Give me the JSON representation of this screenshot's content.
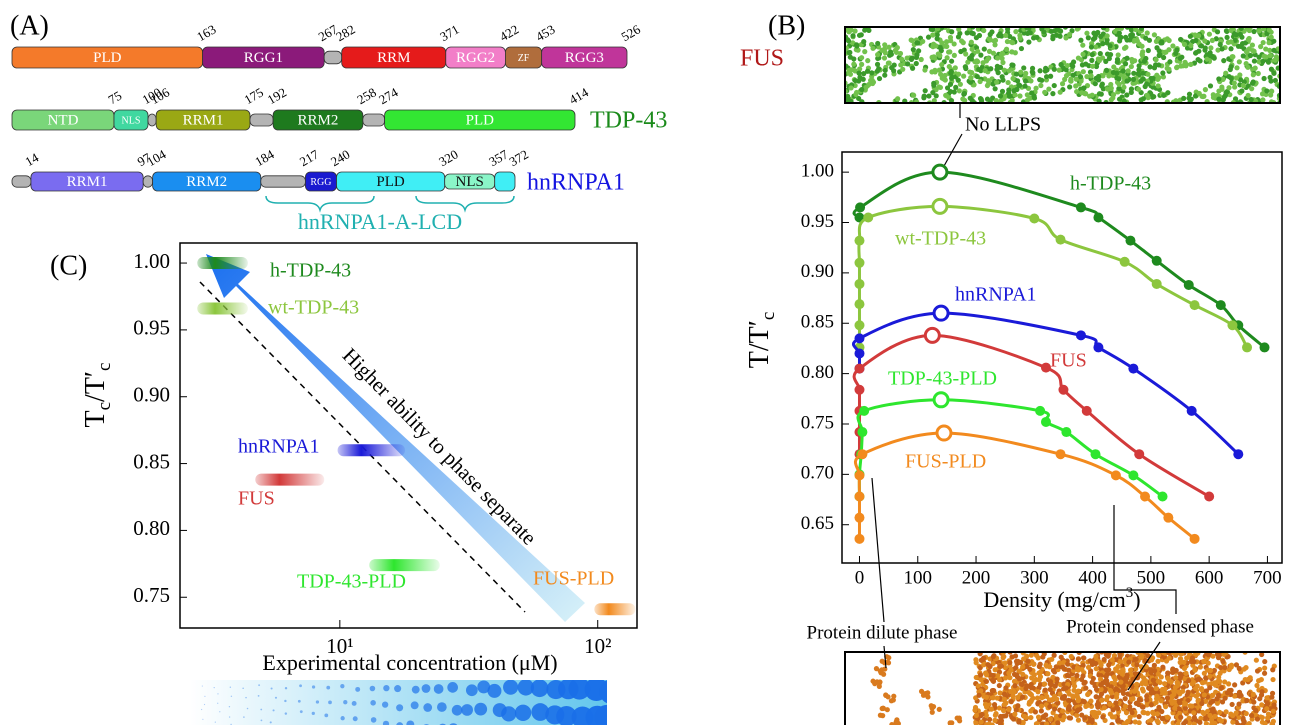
{
  "panel_labels": {
    "a": "(A)",
    "b": "(B)",
    "c": "(C)"
  },
  "domains": {
    "proteins": [
      {
        "name": "FUS",
        "name_color": "#b01818",
        "boundaries": [
          163,
          267,
          282,
          371,
          422,
          453,
          526
        ],
        "segments": [
          "PLD",
          "RGG1",
          null,
          "RRM",
          "RGG2",
          "ZF",
          "RGG3"
        ],
        "colors": [
          "#f47a2a",
          "#8b1a7a",
          "#b4b4b4",
          "#e51b1b",
          "#f27ec8",
          "#b06d3c",
          "#c0359a"
        ]
      },
      {
        "name": "TDP-43",
        "name_color": "#1a8a1a",
        "boundaries": [
          75,
          100,
          106,
          175,
          192,
          258,
          274,
          414
        ],
        "segments": [
          "NTD",
          "NLS",
          null,
          "RRM1",
          null,
          "RRM2",
          null,
          "PLD"
        ],
        "colors": [
          "#7ad67a",
          "#40d8a0",
          "#b4b4b4",
          "#9aa814",
          "#b4b4b4",
          "#1e7a1e",
          "#b4b4b4",
          "#33e633"
        ]
      },
      {
        "name": "hnRNPA1",
        "name_color": "#1414e0",
        "boundaries": [
          14,
          97,
          104,
          184,
          217,
          240,
          320,
          357,
          372
        ],
        "segments": [
          null,
          "RRM1",
          null,
          "RRM2",
          null,
          "RGG",
          "PLD",
          "NLS",
          null
        ],
        "colors": [
          "#b4b4b4",
          "#7a6cf0",
          "#b4b4b4",
          "#1a8ef0",
          "#b4b4b4",
          "#1a1ad0",
          "#40eef5",
          "#8af5c8",
          "#40eef5"
        ]
      }
    ],
    "bracket_label": "hnRNPA1-A-LCD"
  },
  "chart_data": [
    {
      "type": "scatter",
      "xlabel": [
        "Density (mg/cm",
        "3",
        ")"
      ],
      "ylabel": [
        "T/T′",
        "c"
      ],
      "xlim": [
        -30,
        725
      ],
      "ylim": [
        0.612,
        1.02
      ],
      "xticks": [
        0,
        100,
        200,
        300,
        400,
        500,
        600,
        700
      ],
      "yticks": [
        0.65,
        {
          "value": 0.7,
          "label": "0.70"
        },
        0.75,
        {
          "value": 0.8,
          "label": "0.80"
        },
        0.85,
        {
          "value": 0.9,
          "label": "0.90"
        },
        0.95,
        {
          "value": 1,
          "label": "1.00"
        }
      ],
      "series": [
        {
          "name": "h-TDP-43",
          "color": "#1e8a1e",
          "x": [
            0,
            1,
            380,
            410,
            465,
            510,
            565,
            620,
            650,
            695
          ],
          "values": [
            0.955,
            0.965,
            0.965,
            0.955,
            0.932,
            0.912,
            0.888,
            0.868,
            0.848,
            0.826
          ],
          "critical": {
            "x": 138,
            "y": 1
          }
        },
        {
          "name": "wt-TDP-43",
          "color": "#8cc63e",
          "x": [
            0,
            0,
            0,
            0,
            0,
            0,
            15,
            300,
            345,
            455,
            510,
            575,
            640,
            665
          ],
          "values": [
            0.826,
            0.848,
            0.869,
            0.889,
            0.91,
            0.932,
            0.955,
            0.954,
            0.933,
            0.911,
            0.889,
            0.868,
            0.848,
            0.826
          ],
          "critical": {
            "x": 138,
            "y": 0.966
          }
        },
        {
          "name": "hnRNPA1",
          "color": "#1a1ad8",
          "x": [
            0,
            0,
            0,
            380,
            410,
            470,
            570,
            650
          ],
          "values": [
            0.805,
            0.82,
            0.835,
            0.838,
            0.826,
            0.805,
            0.763,
            0.72
          ],
          "critical": {
            "x": 140,
            "y": 0.86
          }
        },
        {
          "name": "FUS",
          "color": "#d23a3a",
          "x": [
            0,
            0,
            0,
            0,
            0,
            320,
            350,
            390,
            480,
            600
          ],
          "values": [
            0.72,
            0.742,
            0.763,
            0.784,
            0.805,
            0.806,
            0.784,
            0.763,
            0.72,
            0.678
          ],
          "critical": {
            "x": 125,
            "y": 0.838
          }
        },
        {
          "name": "TDP-43-PLD",
          "color": "#2ee62e",
          "x": [
            0,
            0,
            3,
            5,
            8,
            310,
            320,
            355,
            405,
            470,
            520
          ],
          "values": [
            0.678,
            0.7,
            0.72,
            0.742,
            0.763,
            0.763,
            0.752,
            0.742,
            0.72,
            0.699,
            0.678
          ],
          "critical": {
            "x": 140,
            "y": 0.774
          }
        },
        {
          "name": "FUS-PLD",
          "color": "#f28a1e",
          "x": [
            0,
            0,
            0,
            0,
            5,
            345,
            440,
            490,
            530,
            575
          ],
          "values": [
            0.636,
            0.657,
            0.678,
            0.699,
            0.72,
            0.72,
            0.699,
            0.678,
            0.657,
            0.636
          ],
          "critical": {
            "x": 145,
            "y": 0.741
          }
        }
      ],
      "annotations": [
        "No LLPS",
        "Protein dilute phase",
        "Protein condensed phase"
      ]
    },
    {
      "type": "range",
      "xscale": "log",
      "xlabel": "Experimental concentration (μM)",
      "ylabel": [
        "T",
        "c",
        "/T′",
        "c"
      ],
      "xlim": [
        2.4,
        142
      ],
      "ylim": [
        0.727,
        1.015
      ],
      "xticks": [
        {
          "value": 10,
          "label": "10¹"
        },
        {
          "value": 100,
          "label": "10²"
        }
      ],
      "yticks": [
        0.75,
        {
          "value": 0.8,
          "label": "0.80"
        },
        0.85,
        {
          "value": 0.9,
          "label": "0.90"
        },
        0.95,
        {
          "value": 1,
          "label": "1.00"
        }
      ],
      "categories": [
        "h-TDP-43",
        "wt-TDP-43",
        "hnRNPA1",
        "FUS",
        "TDP-43-PLD",
        "FUS-PLD"
      ],
      "colors": [
        "#1e8a1e",
        "#8cc63e",
        "#1a1ad8",
        "#d23a3a",
        "#2ee62e",
        "#f28a1e"
      ],
      "x_low": [
        2.8,
        2.8,
        9.8,
        4.7,
        13,
        97
      ],
      "x_high": [
        4.4,
        4.4,
        17.9,
        8.7,
        24.4,
        140
      ],
      "values": [
        1,
        0.966,
        0.86,
        0.838,
        0.774,
        0.741
      ],
      "arrow_label": "Higher ability to phase separate"
    }
  ]
}
